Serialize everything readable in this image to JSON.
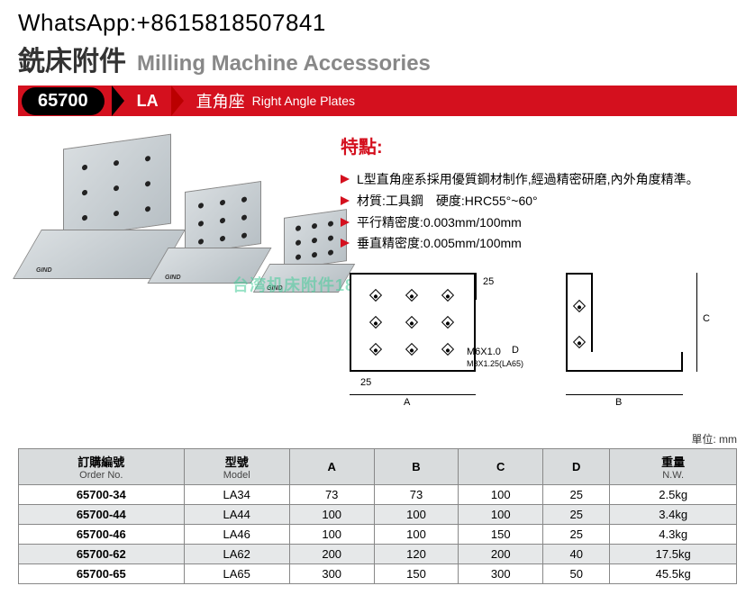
{
  "contact": "WhatsApp:+8615818507841",
  "header": {
    "title_cn": "銑床附件",
    "title_en": "Milling Machine Accessories"
  },
  "banner": {
    "code": "65700",
    "series": "LA",
    "name_cn": "直角座",
    "name_en": "Right Angle Plates"
  },
  "features": {
    "title": "特點:",
    "items": [
      "L型直角座系採用優質鋼材制作,經過精密研磨,內外角度精準。",
      "材質:工具鋼　硬度:HRC55°~60°",
      "平行精密度:0.003mm/100mm",
      "垂直精密度:0.005mm/100mm"
    ]
  },
  "diagram": {
    "dim25a": "25",
    "dim25b": "25",
    "thread1": "M6X1.0",
    "thread2": "M8X1.25(LA65)",
    "labelA": "A",
    "labelB": "B",
    "labelC": "C",
    "labelD": "D"
  },
  "watermark": "台湾机床附件18926825659",
  "table": {
    "unit": "單位: mm",
    "headers": [
      {
        "cn": "訂購編號",
        "en": "Order No."
      },
      {
        "cn": "型號",
        "en": "Model"
      },
      {
        "cn": "A",
        "en": ""
      },
      {
        "cn": "B",
        "en": ""
      },
      {
        "cn": "C",
        "en": ""
      },
      {
        "cn": "D",
        "en": ""
      },
      {
        "cn": "重量",
        "en": "N.W."
      }
    ],
    "rows": [
      [
        "65700-34",
        "LA34",
        "73",
        "73",
        "100",
        "25",
        "2.5kg"
      ],
      [
        "65700-44",
        "LA44",
        "100",
        "100",
        "100",
        "25",
        "3.4kg"
      ],
      [
        "65700-46",
        "LA46",
        "100",
        "100",
        "150",
        "25",
        "4.3kg"
      ],
      [
        "65700-62",
        "LA62",
        "200",
        "120",
        "200",
        "40",
        "17.5kg"
      ],
      [
        "65700-65",
        "LA65",
        "300",
        "150",
        "300",
        "50",
        "45.5kg"
      ]
    ]
  },
  "colors": {
    "red": "#d4101e",
    "header_gray": "#d9dcdd",
    "alt_row": "#e6e8e9"
  }
}
